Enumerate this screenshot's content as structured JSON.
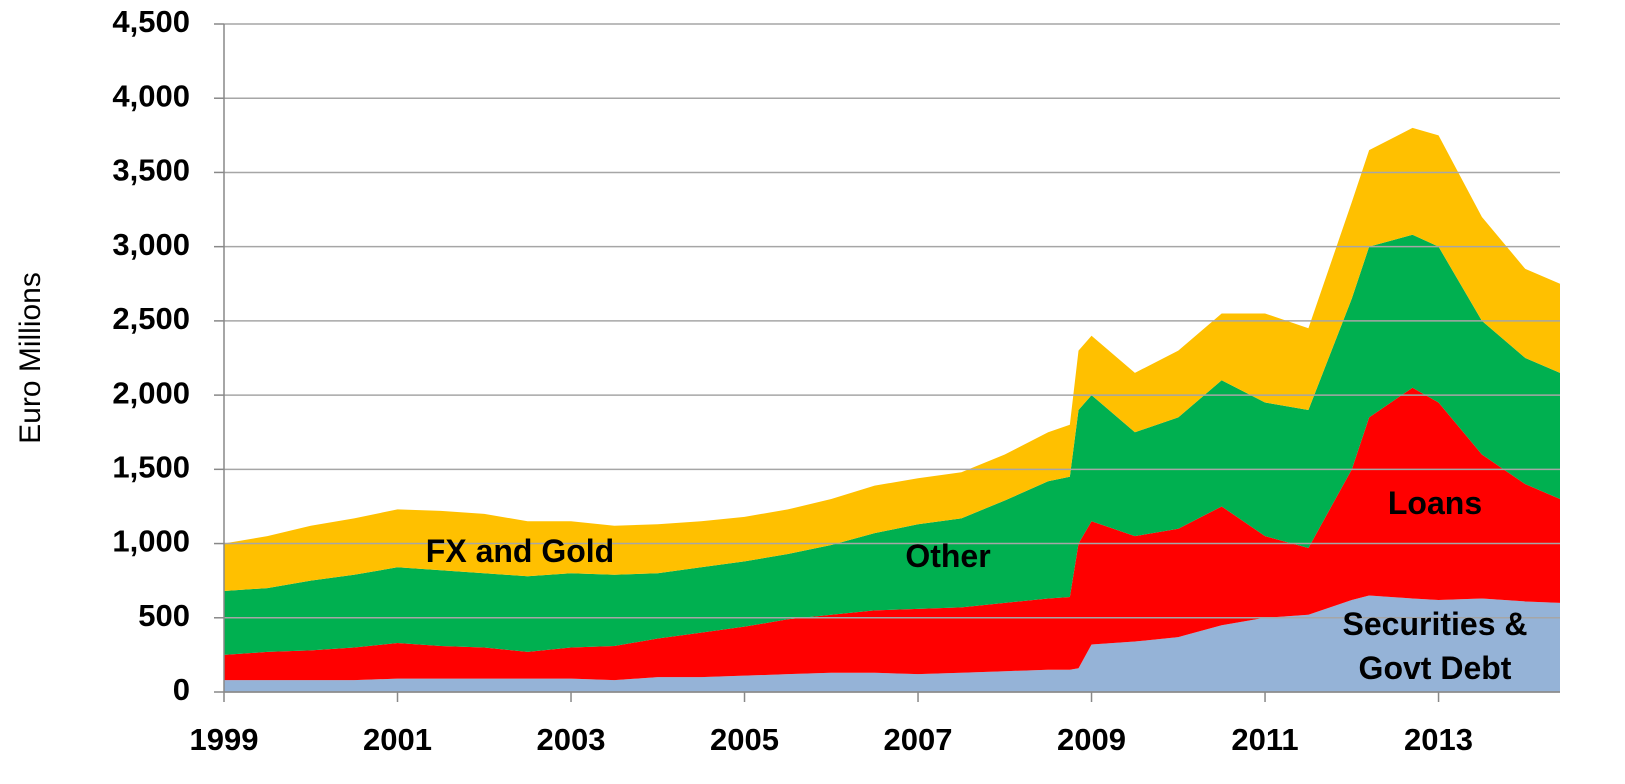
{
  "chart_data": {
    "type": "stacked_area",
    "ylabel": "Euro Millions",
    "x": [
      1999.0,
      1999.5,
      2000.0,
      2000.5,
      2001.0,
      2001.5,
      2002.0,
      2002.5,
      2003.0,
      2003.5,
      2004.0,
      2004.5,
      2005.0,
      2005.5,
      2006.0,
      2006.5,
      2007.0,
      2007.5,
      2008.0,
      2008.5,
      2008.75,
      2008.85,
      2009.0,
      2009.5,
      2010.0,
      2010.5,
      2011.0,
      2011.5,
      2012.0,
      2012.2,
      2012.7,
      2013.0,
      2013.5,
      2014.0,
      2014.4
    ],
    "series": [
      {
        "name": "Securities & Govt Debt",
        "color": "#95b3d7",
        "values": [
          80,
          80,
          80,
          80,
          90,
          90,
          90,
          90,
          90,
          80,
          100,
          100,
          110,
          120,
          130,
          130,
          120,
          130,
          140,
          150,
          150,
          160,
          320,
          340,
          370,
          450,
          500,
          520,
          620,
          650,
          630,
          620,
          630,
          610,
          600
        ]
      },
      {
        "name": "Loans",
        "color": "#ff0000",
        "values": [
          170,
          190,
          200,
          220,
          240,
          220,
          210,
          180,
          210,
          230,
          260,
          300,
          330,
          370,
          390,
          420,
          440,
          440,
          460,
          480,
          490,
          840,
          830,
          710,
          730,
          800,
          550,
          450,
          880,
          1200,
          1420,
          1330,
          970,
          790,
          700
        ]
      },
      {
        "name": "Other",
        "color": "#00b050",
        "values": [
          430,
          430,
          470,
          490,
          510,
          510,
          500,
          510,
          500,
          480,
          440,
          440,
          440,
          440,
          470,
          520,
          570,
          600,
          690,
          790,
          810,
          900,
          850,
          700,
          750,
          850,
          900,
          930,
          1150,
          1150,
          1030,
          1050,
          900,
          850,
          850
        ]
      },
      {
        "name": "FX and Gold",
        "color": "#ffc000",
        "values": [
          320,
          350,
          370,
          380,
          390,
          400,
          400,
          370,
          350,
          330,
          330,
          310,
          300,
          300,
          310,
          320,
          310,
          310,
          310,
          330,
          350,
          400,
          400,
          400,
          450,
          450,
          600,
          550,
          650,
          650,
          720,
          750,
          700,
          600,
          600
        ]
      }
    ],
    "xlim": [
      1999,
      2014.4
    ],
    "xticks": [
      1999,
      2001,
      2003,
      2005,
      2007,
      2009,
      2011,
      2013
    ],
    "ylim": [
      0,
      4500
    ],
    "yticks": [
      0,
      500,
      {
        "value": 1000,
        "label": "1,000"
      },
      {
        "value": 1500,
        "label": "1,500"
      },
      {
        "value": 2000,
        "label": "2,000"
      },
      {
        "value": 2500,
        "label": "2,500"
      },
      {
        "value": 3000,
        "label": "3,000"
      },
      {
        "value": 3500,
        "label": "3,500"
      },
      {
        "value": 4000,
        "label": "4,000"
      },
      {
        "value": 4500,
        "label": "4,500"
      }
    ],
    "grid": true
  }
}
